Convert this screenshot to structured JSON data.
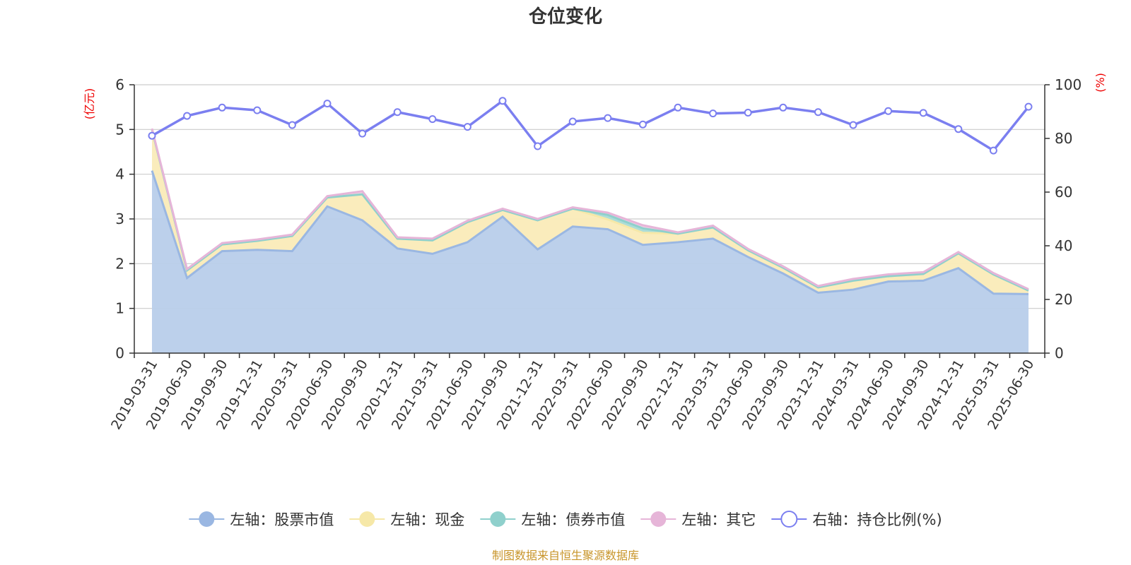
{
  "title": "仓位变化",
  "source": "制图数据来自恒生聚源数据库",
  "left_unit": "(亿元)",
  "right_unit": "(%)",
  "chart_data": {
    "type": "area",
    "title": "仓位变化",
    "x": [
      "2019-03-31",
      "2019-06-30",
      "2019-09-30",
      "2019-12-31",
      "2020-03-31",
      "2020-06-30",
      "2020-09-30",
      "2020-12-31",
      "2021-03-31",
      "2021-06-30",
      "2021-09-30",
      "2021-12-31",
      "2022-03-31",
      "2022-06-30",
      "2022-09-30",
      "2022-12-31",
      "2023-03-31",
      "2023-06-30",
      "2023-09-30",
      "2023-12-31",
      "2024-03-31",
      "2024-06-30",
      "2024-09-30",
      "2024-12-31",
      "2025-03-31",
      "2025-06-30"
    ],
    "left_axis": {
      "min": 0,
      "max": 6,
      "ticks": [
        "0",
        "1",
        "2",
        "3",
        "4",
        "5",
        "6"
      ]
    },
    "right_axis": {
      "min": 0,
      "max": 100,
      "ticks": [
        "0",
        "20",
        "40",
        "60",
        "80",
        "100"
      ]
    },
    "grid": true,
    "legend_position": "bottom",
    "series": [
      {
        "name": "左轴：股票市值",
        "axis": "left",
        "stack": true,
        "color": "#9ab7e2",
        "fill": "#b8cdea",
        "values": [
          4.08,
          1.68,
          2.28,
          2.31,
          2.28,
          3.28,
          2.97,
          2.34,
          2.22,
          2.48,
          3.05,
          2.32,
          2.83,
          2.77,
          2.42,
          2.48,
          2.56,
          2.15,
          1.78,
          1.35,
          1.42,
          1.6,
          1.62,
          1.9,
          1.33,
          1.32
        ]
      },
      {
        "name": "左轴：现金",
        "axis": "left",
        "stack": true,
        "color": "#f6e8a8",
        "fill": "#faebb8",
        "values": [
          0.92,
          0.17,
          0.15,
          0.2,
          0.34,
          0.2,
          0.58,
          0.22,
          0.3,
          0.45,
          0.15,
          0.65,
          0.4,
          0.22,
          0.27,
          0.19,
          0.25,
          0.15,
          0.13,
          0.12,
          0.2,
          0.12,
          0.15,
          0.33,
          0.43,
          0.08
        ]
      },
      {
        "name": "左轴：债券市值",
        "axis": "left",
        "stack": true,
        "color": "#8fd0cc",
        "fill": "#a8dbd6",
        "values": [
          0,
          0,
          0,
          0,
          0,
          0,
          0,
          0,
          0,
          0,
          0,
          0,
          0,
          0.1,
          0.1,
          0,
          0,
          0,
          0,
          0,
          0,
          0,
          0,
          0,
          0,
          0
        ]
      },
      {
        "name": "左轴：其它",
        "axis": "left",
        "stack": true,
        "color": "#e6b5d8",
        "fill": "#f0cbe4",
        "values": [
          0.02,
          0.03,
          0.03,
          0.03,
          0.03,
          0.03,
          0.07,
          0.03,
          0.04,
          0.03,
          0.03,
          0.03,
          0.03,
          0.05,
          0.07,
          0.03,
          0.04,
          0.03,
          0.03,
          0.03,
          0.04,
          0.04,
          0.04,
          0.03,
          0.03,
          0.03
        ]
      },
      {
        "name": "右轴：持仓比例(%)",
        "axis": "right",
        "stack": false,
        "color": "#7b7ff0",
        "values": [
          81.0,
          88.4,
          91.5,
          90.5,
          85.0,
          93.0,
          81.8,
          89.8,
          87.2,
          84.3,
          94.0,
          77.1,
          86.3,
          87.6,
          85.2,
          91.5,
          89.3,
          89.6,
          91.5,
          89.8,
          85.0,
          90.2,
          89.5,
          83.5,
          75.5,
          91.8
        ]
      }
    ]
  }
}
